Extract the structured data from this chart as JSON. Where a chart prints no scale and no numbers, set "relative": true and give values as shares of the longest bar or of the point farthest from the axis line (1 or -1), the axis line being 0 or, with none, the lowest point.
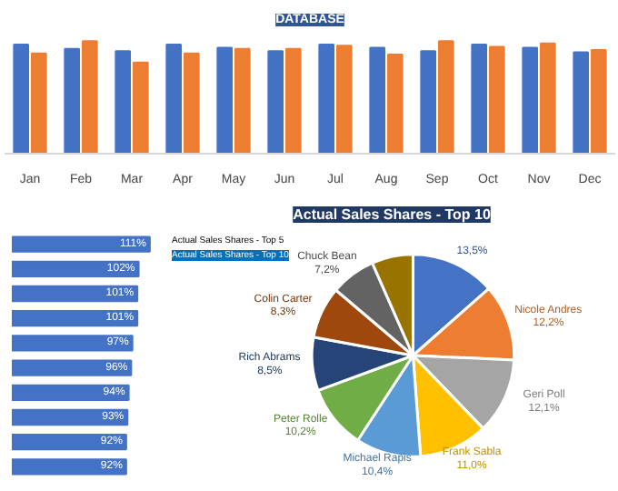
{
  "chart_data": [
    {
      "type": "bar",
      "relative": true,
      "annotations": [
        "DATABASE"
      ],
      "categories": [
        "Jan",
        "Feb",
        "Mar",
        "Apr",
        "May",
        "Jun",
        "Jul",
        "Aug",
        "Sep",
        "Oct",
        "Nov",
        "Dec"
      ],
      "series": [
        {
          "color": "#4472c4",
          "values": [
            0.97,
            0.93,
            0.91,
            0.97,
            0.94,
            0.91,
            0.97,
            0.94,
            0.91,
            0.97,
            0.94,
            0.9
          ]
        },
        {
          "color": "#ed7d31",
          "values": [
            0.89,
            1,
            0.81,
            0.89,
            0.93,
            0.93,
            0.96,
            0.88,
            1,
            0.95,
            0.98,
            0.92
          ]
        }
      ]
    },
    {
      "type": "bar",
      "orientation": "horizontal",
      "categories": [
        null,
        null,
        null,
        null,
        null,
        null,
        null,
        null,
        null,
        null
      ],
      "values": [
        111,
        102,
        101,
        101,
        97,
        96,
        94,
        93,
        92,
        92
      ],
      "color": "#4472c4",
      "value_labels": [
        "111%",
        "102%",
        "101%",
        "101%",
        "97%",
        "96%",
        "94%",
        "93%",
        "92%",
        "92%"
      ]
    },
    {
      "type": "pie",
      "title": "Actual Sales Shares - Top 10",
      "annotations": [
        "Actual Sales Shares - Top 5",
        "Actual Sales Shares - Top 10"
      ],
      "categories": [
        null,
        "Nicole Andres",
        "Geri Poll",
        "Frank Sabla",
        "Michael Rapis",
        "Peter Rolle",
        "Rich Abrams",
        "Colin Carter",
        "Chuck Bean",
        null
      ],
      "values": [
        13.5,
        12.2,
        12.1,
        11.0,
        10.4,
        10.2,
        8.5,
        8.3,
        7.2,
        6.6
      ],
      "colors": [
        "#4472c4",
        "#ed7d31",
        "#a5a5a5",
        "#ffc000",
        "#5b9bd5",
        "#70ad47",
        "#264478",
        "#9e480e",
        "#636363",
        "#997300"
      ],
      "value_labels": [
        "13,5%",
        "12,2%",
        "12,1%",
        "11,0%",
        "10,4%",
        "10,2%",
        "8,5%",
        "8,3%",
        "7,2%",
        null
      ]
    }
  ]
}
